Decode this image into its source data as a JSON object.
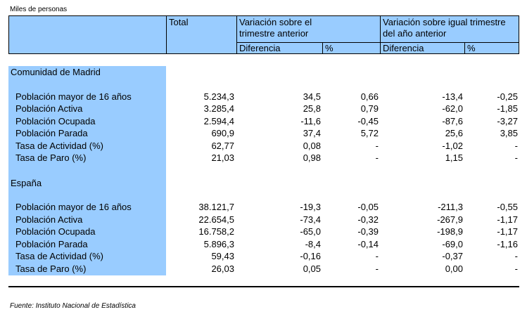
{
  "units_label": "Miles de personas",
  "header": {
    "total": "Total",
    "var_prev": "Variación sobre el trimestre anterior",
    "var_prev_l1": "Variación sobre el",
    "var_prev_l2": "trimestre anterior",
    "var_year_l1": "Variación sobre igual trimestre",
    "var_year_l2": "del año anterior",
    "diff1": "Diferencia",
    "pct1": "%",
    "diff2": "Diferencia",
    "pct2": "%"
  },
  "sections": [
    {
      "title": "Comunidad de Madrid",
      "rows": [
        {
          "label": "Población mayor de 16 años",
          "total": "5.234,3",
          "d1": "34,5",
          "p1": "0,66",
          "d2": "-13,4",
          "p2": "-0,25"
        },
        {
          "label": "Población Activa",
          "total": "3.285,4",
          "d1": "25,8",
          "p1": "0,79",
          "d2": "-62,0",
          "p2": "-1,85"
        },
        {
          "label": "Población Ocupada",
          "total": "2.594,4",
          "d1": "-11,6",
          "p1": "-0,45",
          "d2": "-87,6",
          "p2": "-3,27"
        },
        {
          "label": "Población Parada",
          "total": "690,9",
          "d1": "37,4",
          "p1": "5,72",
          "d2": "25,6",
          "p2": "3,85"
        },
        {
          "label": "Tasa de Actividad (%)",
          "total": "62,77",
          "d1": "0,08",
          "p1": "-",
          "d2": "-1,02",
          "p2": "-"
        },
        {
          "label": "Tasa de Paro (%)",
          "total": "21,03",
          "d1": "0,98",
          "p1": "-",
          "d2": "1,15",
          "p2": "-"
        }
      ]
    },
    {
      "title": "España",
      "rows": [
        {
          "label": "Población mayor de 16 años",
          "total": "38.121,7",
          "d1": "-19,3",
          "p1": "-0,05",
          "d2": "-211,3",
          "p2": "-0,55"
        },
        {
          "label": "Población Activa",
          "total": "22.654,5",
          "d1": "-73,4",
          "p1": "-0,32",
          "d2": "-267,9",
          "p2": "-1,17"
        },
        {
          "label": "Población Ocupada",
          "total": "16.758,2",
          "d1": "-65,0",
          "p1": "-0,39",
          "d2": "-198,9",
          "p2": "-1,17"
        },
        {
          "label": "Población Parada",
          "total": "5.896,3",
          "d1": "-8,4",
          "p1": "-0,14",
          "d2": "-69,0",
          "p2": "-1,16"
        },
        {
          "label": "Tasa de Actividad (%)",
          "total": "59,43",
          "d1": "-0,16",
          "p1": "-",
          "d2": "-0,37",
          "p2": "-"
        },
        {
          "label": "Tasa de Paro (%)",
          "total": "26,03",
          "d1": "0,05",
          "p1": "-",
          "d2": "0,00",
          "p2": "-"
        }
      ]
    }
  ],
  "source": "Fuente: Instituto Nacional de Estadística",
  "colors": {
    "header_bg": "#99ccff",
    "label_bg": "#99ccff"
  }
}
